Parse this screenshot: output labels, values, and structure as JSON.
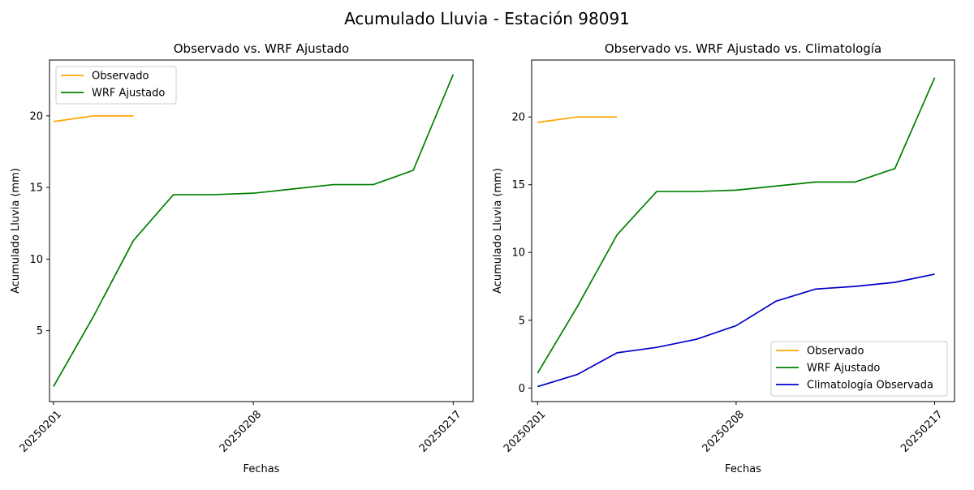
{
  "figure": {
    "title": "Acumulado Lluvia - Estación 98091"
  },
  "chart_data": [
    {
      "type": "line",
      "title": "Observado vs. WRF Ajustado",
      "xlabel": "Fechas",
      "ylabel": "Acumulado Lluvia (mm)",
      "x_tick_labels": [
        "20250201",
        "20250208",
        "20250217"
      ],
      "y_ticks": [
        5,
        10,
        15,
        20
      ],
      "xlim": [
        -0.1,
        10.5
      ],
      "ylim": [
        0.05,
        23.9
      ],
      "legend_position": "upper-left",
      "grid": false,
      "series": [
        {
          "name": "Observado",
          "color": "#ffa500",
          "x": [
            0,
            1,
            2
          ],
          "y": [
            19.6,
            20.0,
            20.0
          ]
        },
        {
          "name": "WRF Ajustado",
          "color": "#008000",
          "x": [
            0,
            1,
            2,
            3,
            4,
            5,
            6,
            7,
            8,
            9,
            10
          ],
          "y": [
            1.1,
            6.0,
            11.3,
            14.5,
            14.5,
            14.6,
            14.9,
            15.2,
            15.2,
            16.2,
            22.9
          ]
        }
      ]
    },
    {
      "type": "line",
      "title": "Observado vs. WRF Ajustado vs. Climatología",
      "xlabel": "Fechas",
      "ylabel": "Acumulado Lluvia (mm)",
      "x_tick_labels": [
        "20250201",
        "20250208",
        "20250217"
      ],
      "y_ticks": [
        0,
        5,
        10,
        15,
        20
      ],
      "xlim": [
        -0.15,
        10.5
      ],
      "ylim": [
        -1.0,
        24.2
      ],
      "legend_position": "lower-right",
      "grid": false,
      "series": [
        {
          "name": "Observado",
          "color": "#ffa500",
          "x": [
            0,
            1,
            2
          ],
          "y": [
            19.6,
            20.0,
            20.0
          ]
        },
        {
          "name": "WRF Ajustado",
          "color": "#008000",
          "x": [
            0,
            1,
            2,
            3,
            4,
            5,
            6,
            7,
            8,
            9,
            10
          ],
          "y": [
            1.1,
            6.0,
            11.3,
            14.5,
            14.5,
            14.6,
            14.9,
            15.2,
            15.2,
            16.2,
            22.9
          ]
        },
        {
          "name": "Climatología Observada",
          "color": "#0000cc",
          "x": [
            0,
            1,
            2,
            3,
            4,
            5,
            6,
            7,
            8,
            9,
            10
          ],
          "y": [
            0.1,
            1.0,
            2.6,
            3.0,
            3.6,
            4.6,
            6.4,
            7.3,
            7.5,
            7.8,
            8.4
          ]
        }
      ]
    }
  ]
}
